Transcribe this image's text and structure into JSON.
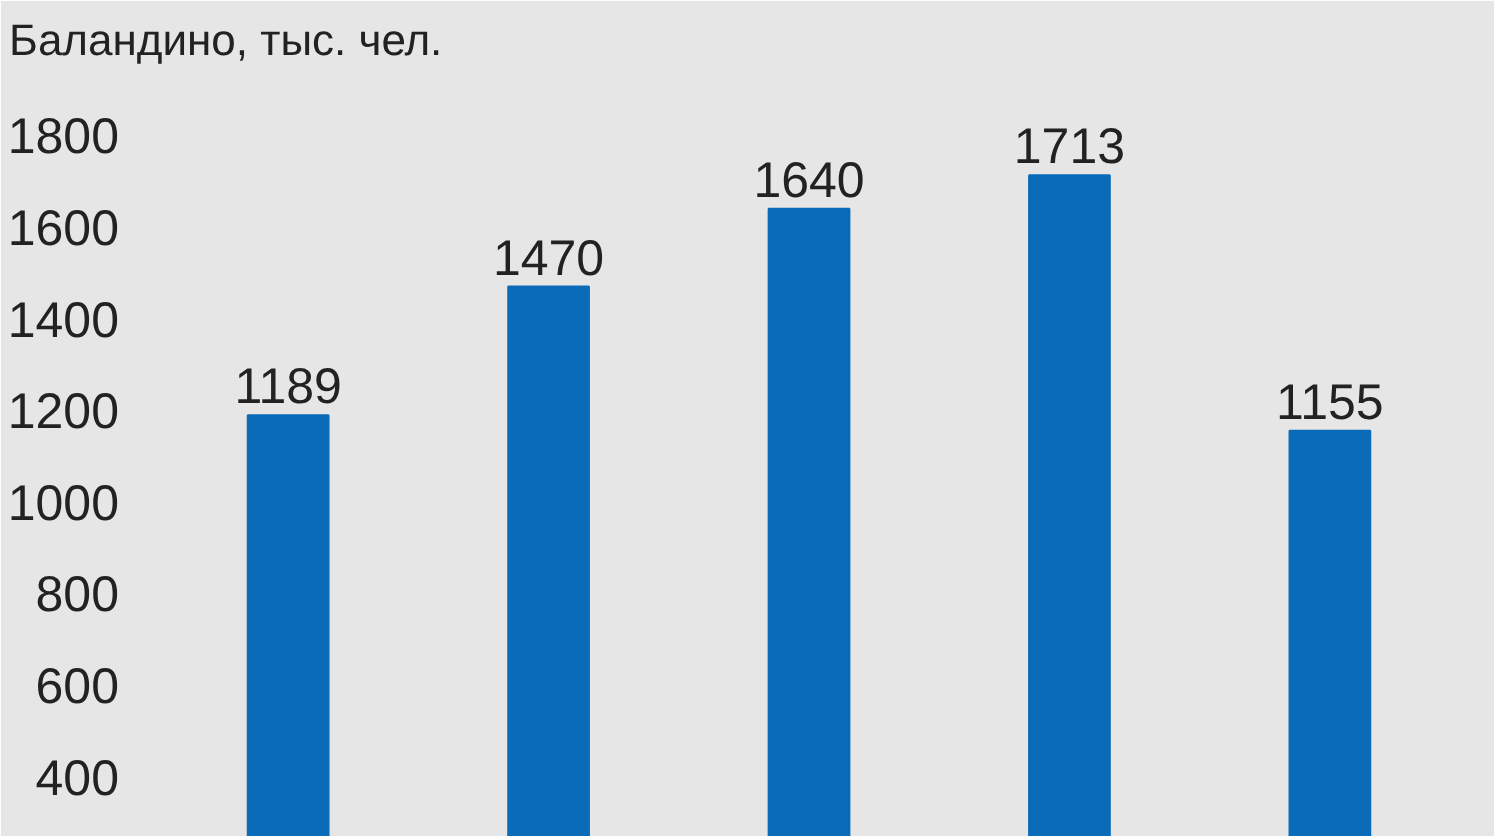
{
  "chart_data": {
    "type": "bar",
    "title": "Баландино, тыс. чел.",
    "categories": [
      null,
      null,
      null,
      null,
      null
    ],
    "values": [
      1189,
      1470,
      1640,
      1713,
      1155
    ],
    "color": "#0a6bb8",
    "data_labels": true,
    "ylim": [
      268,
      1932
    ],
    "yticks": [
      400,
      600,
      800,
      1000,
      1200,
      1400,
      1600,
      1800
    ],
    "tick_labels": "y"
  }
}
